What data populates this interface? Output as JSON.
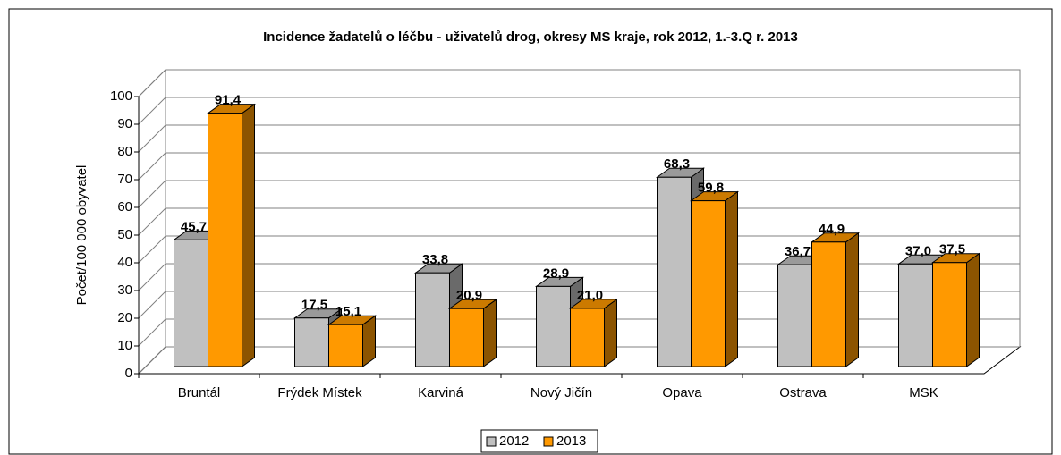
{
  "chart_data": {
    "type": "bar3d",
    "title": "Incidence žadatelů o léčbu - uživatelů drog, okresy MS kraje, rok 2012, 1.-3.Q r. 2013",
    "y_label": "Počet/100 000 obyvatel",
    "categories": [
      "Bruntál",
      "Frýdek Místek",
      "Karviná",
      "Nový Jičín",
      "Opava",
      "Ostrava",
      "MSK"
    ],
    "series": [
      {
        "name": "2012",
        "color": "#c0c0c0",
        "values": [
          45.7,
          17.5,
          33.8,
          28.9,
          68.3,
          36.7,
          37.0
        ],
        "value_labels": [
          "45,7",
          "17,5",
          "33,8",
          "28,9",
          "68,3",
          "36,7",
          "37,0"
        ]
      },
      {
        "name": "2013",
        "color": "#ff9900",
        "values": [
          91.4,
          15.1,
          20.9,
          21.0,
          59.8,
          44.9,
          37.5
        ],
        "value_labels": [
          "91,4",
          "15,1",
          "20,9",
          "21,0",
          "59,8",
          "44,9",
          "37,5"
        ]
      }
    ],
    "ylim": [
      0,
      100
    ],
    "yticks": [
      0,
      10,
      20,
      30,
      40,
      50,
      60,
      70,
      80,
      90,
      100
    ],
    "grid": true,
    "legend": "bottom"
  }
}
